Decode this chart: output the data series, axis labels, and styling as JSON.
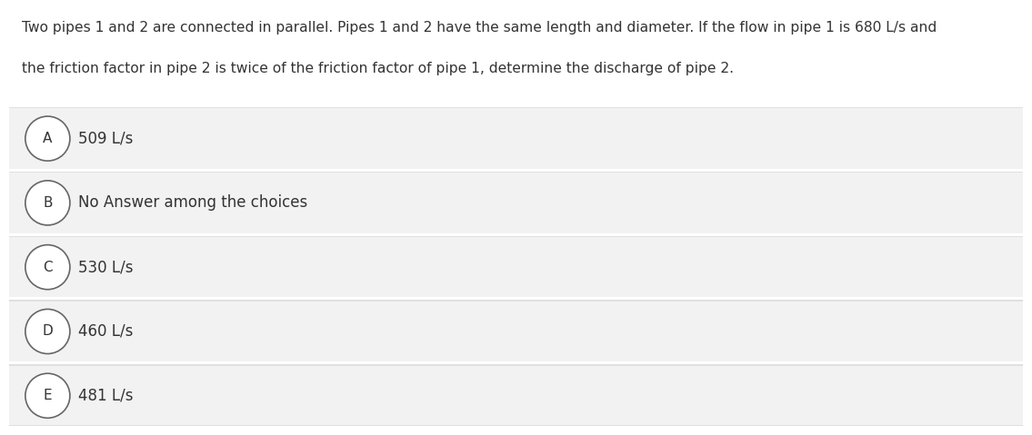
{
  "question_line1": "Two pipes 1 and 2 are connected in parallel. Pipes 1 and 2 have the same length and diameter. If the flow in pipe 1 is 680 L/s and",
  "question_line2": "the friction factor in pipe 2 is twice of the friction factor of pipe 1, determine the discharge of pipe 2.",
  "choices": [
    {
      "label": "A",
      "text": "509 L/s"
    },
    {
      "label": "B",
      "text": "No Answer among the choices"
    },
    {
      "label": "C",
      "text": "530 L/s"
    },
    {
      "label": "D",
      "text": "460 L/s"
    },
    {
      "label": "E",
      "text": "481 L/s"
    }
  ],
  "background_color": "#ffffff",
  "choice_bg_color": "#f2f2f2",
  "choice_border_color": "#e0e0e0",
  "text_color": "#333333",
  "circle_edge_color": "#666666",
  "circle_face_color": "#ffffff",
  "question_fontsize": 11.2,
  "choice_fontsize": 12.0,
  "label_fontsize": 11.0,
  "fig_width": 11.15,
  "fig_height": 4.29
}
